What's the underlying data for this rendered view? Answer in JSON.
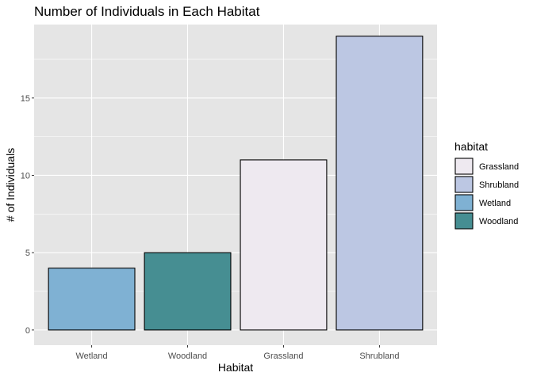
{
  "chart_data": {
    "type": "bar",
    "title": "Number of Individuals in Each Habitat",
    "xlabel": "Habitat",
    "ylabel": "# of Individuals",
    "categories": [
      "Wetland",
      "Woodland",
      "Grassland",
      "Shrubland"
    ],
    "values": [
      4,
      5,
      11,
      19
    ],
    "ylim": [
      0,
      19.75
    ],
    "yticks": [
      0,
      5,
      10,
      15
    ],
    "grid": true,
    "legend": {
      "title": "habitat",
      "placement": "right",
      "entries": [
        "Grassland",
        "Shrubland",
        "Wetland",
        "Woodland"
      ]
    },
    "colors": {
      "Wetland": "#7fb1d3",
      "Woodland": "#468e92",
      "Grassland": "#eee9f0",
      "Shrubland": "#bcc7e3"
    },
    "panel_background": "#e5e5e5",
    "grid_color": "#ffffff",
    "bar_outline": "#000000"
  }
}
